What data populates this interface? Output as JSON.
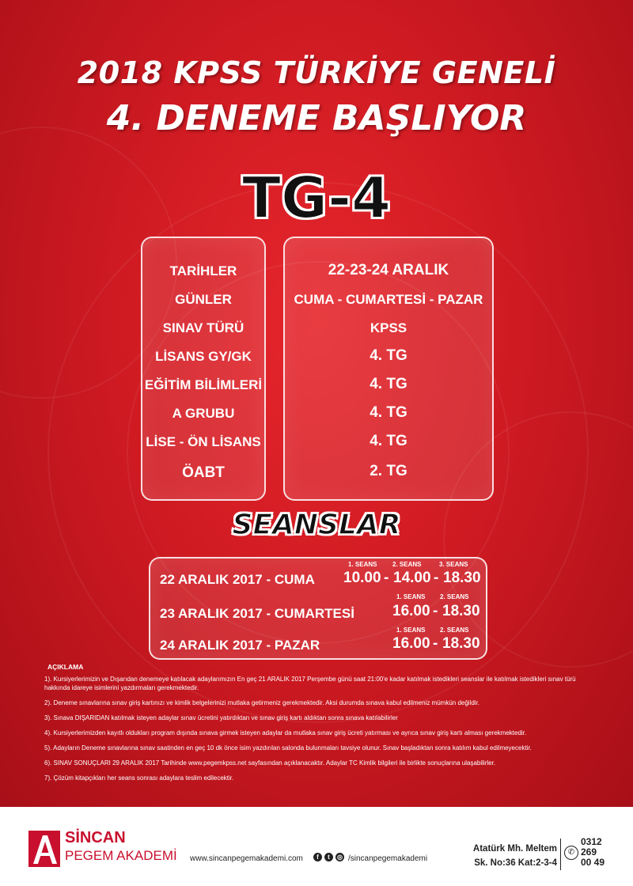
{
  "header": {
    "line1": "2018 KPSS TÜRKİYE GENELİ",
    "line2": "4. DENEME  BAŞLIYOR",
    "code": "TG-4"
  },
  "table": {
    "rows": [
      {
        "label": "TARİHLER",
        "value": "22-23-24 ARALIK"
      },
      {
        "label": "GÜNLER",
        "value": "CUMA - CUMARTESİ - PAZAR"
      },
      {
        "label": "SINAV TÜRÜ",
        "value": "KPSS"
      },
      {
        "label": "LİSANS GY/GK",
        "value": "4. TG"
      },
      {
        "label": "EĞİTİM BİLİMLERİ",
        "value": "4. TG"
      },
      {
        "label": "A GRUBU",
        "value": "4. TG"
      },
      {
        "label": "LİSE - ÖN LİSANS",
        "value": "4. TG"
      },
      {
        "label": "ÖABT",
        "value": "2. TG"
      }
    ]
  },
  "sessions": {
    "title": "SEANSLAR",
    "days": [
      {
        "date": "22 ARALIK  2017 - CUMA",
        "headers": [
          "1. SEANS",
          "2. SEANS",
          "3. SEANS"
        ],
        "times": [
          "10.00",
          "-",
          "14.00",
          "-",
          "18.30"
        ]
      },
      {
        "date": "23 ARALIK  2017 - CUMARTESİ",
        "headers": [
          "1. SEANS",
          "2. SEANS"
        ],
        "times": [
          "16.00",
          "-",
          "18.30"
        ]
      },
      {
        "date": "24 ARALIK  2017 - PAZAR",
        "headers": [
          "1. SEANS",
          "2. SEANS"
        ],
        "times": [
          "16.00",
          "-",
          "18.30"
        ]
      }
    ]
  },
  "notes": {
    "title": "AÇIKLAMA",
    "items": [
      "1). Kursiyerlerimizin ve Dışarıdan denemeye katılacak adaylarımızın En geç  21 ARALIK 2017 Perşembe günü saat 21:00'e kadar katılmak istedikleri seanslar ile katılmak istedikleri sınav türü hakkında idareye isimlerini yazdırmaları gerekmektedir.",
      "2). Deneme sınavlarına sınav giriş kartınızı ve kimlik belgelerinizi mutlaka getirmeniz gerekmektedir. Aksi durumda sınava kabul edilmeniz mümkün değildir.",
      "3). Sınava DIŞARIDAN katılmak isteyen adaylar sınav ücretini yatırdıktan ve sınav giriş kartı aldıktan sonra sınava katılabilirler",
      "4). Kursiyerlerimizden kayıtlı oldukları program dışında sınava girmek isteyen adaylar da mutlaka sınav giriş ücreti yatırması ve ayrıca  sınav giriş kartı alması gerekmektedir.",
      "5). Adayların Deneme sınavlarına sınav saatinden en geç 10 dk önce isim yazdırılan salonda bulunmaları tavsiye olunur. Sınav başladıktan sonra katılım kabul edilmeyecektir.",
      "6). SINAV SONUÇLARI 29 ARALIK 2017 Tarihinde www.pegemkpss.net sayfasından açıklanacaktır. Adaylar TC Kimlik bilgileri ile birlikte sonuçlarına ulaşabilirler.",
      "7). Çözüm kitapçıkları her seans sonrası adaylara teslim edilecektir."
    ]
  },
  "footer": {
    "brand_name": "SİNCAN",
    "brand_sub": "PEGEM AKADEMİ",
    "website": "www.sincanpegemakademi.com",
    "social_handle": "/sincanpegemakademi",
    "social_icons": [
      "facebook-icon",
      "twitter-icon",
      "instagram-icon"
    ],
    "address_line1": "Atatürk Mh. Meltem",
    "address_line2": "Sk. No:36 Kat:2-3-4",
    "phone_lines": [
      "0312",
      "269",
      "00 49"
    ]
  },
  "colors": {
    "background": "#d41f26",
    "brand_red": "#c8102e"
  }
}
